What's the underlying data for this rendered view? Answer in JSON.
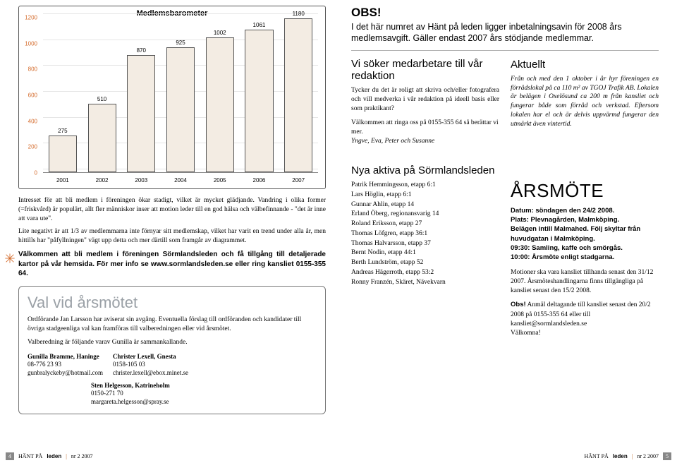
{
  "chart": {
    "title": "Medlemsbarometer",
    "type": "bar",
    "ymax": 1200,
    "ytick_step": 200,
    "yticks": [
      0,
      200,
      400,
      600,
      800,
      1000,
      1200
    ],
    "categories": [
      "2001",
      "2002",
      "2003",
      "2004",
      "2005",
      "2006",
      "2007"
    ],
    "values": [
      275,
      510,
      870,
      925,
      1002,
      1061,
      1180
    ],
    "bar_fill": "#f3ece3",
    "bar_border": "#555555",
    "ylabel_color": "#d46a2a",
    "grid_color": "#e5e5e5",
    "background_color": "#ffffff"
  },
  "left": {
    "p1": "Intresset för att bli medlem i föreningen ökar stadigt, vilket är mycket glädjande. Vandring i olika former (=friskvård) är populärt, allt fler människor inser att motion leder till en god hälsa och välbefinnande - \"det är inne att vara ute\".",
    "p2": "Lite negativt är att 1/3 av medlemmarna inte förnyar sitt medlemskap, vilket har varit en trend under alla år, men hittills har \"påfyllningen\" vägt upp detta och mer därtill som framgår av diagrammet.",
    "star_bold": "Välkommen att bli medlem i föreningen Sörmlandsleden och få tillgång till detaljerade kartor på vår hemsida. För mer info se www.sormlandsleden.se eller ring kansliet 0155-355 64.",
    "val": {
      "title": "Val vid årsmötet",
      "p1": "Ordförande Jan Larsson har aviserat sin avgång. Eventuella förslag till ordföranden och kandidater till övriga stadgeenliga val kan framföras till valberedningen eller vid årsmötet.",
      "p2": "Valberedning är följande varav Gunilla är sammankallande.",
      "c1": {
        "name": "Gunilla Bramme, Haninge",
        "phone": "08-776 23 93",
        "email": "gunbralyckeby@hotmail.com"
      },
      "c2": {
        "name": "Christer Lexell, Gnesta",
        "phone": "0158-105 03",
        "email": "christer.lexell@ebox.minet.se"
      },
      "c3": {
        "name": "Sten Helgesson, Katrineholm",
        "phone": "0150-271 70",
        "email": "margareta.helgesson@spray.se"
      }
    }
  },
  "right": {
    "obs": {
      "title": "OBS!",
      "body": "I det här numret av Hänt på leden ligger inbetalningsavin för 2008 års medlemsavgift. Gäller endast 2007 års stödjande medlemmar."
    },
    "colL": {
      "h1": "Vi söker medarbetare till vår redaktion",
      "p1": "Tycker du det är roligt att skriva och/eller fotografera och vill medverka i vår redaktion på ideell basis eller som praktikant?",
      "p2": "Välkommen att ringa oss på 0155-355 64 så berättar vi mer.",
      "sign": "Yngve, Eva, Peter och Susanne",
      "h2": "Nya aktiva på Sörmlandsleden",
      "list": [
        "Patrik Hemmingsson, etapp 6:1",
        "Lars Höglin, etapp 6:1",
        "Gunnar Ahlin, etapp 14",
        "Erland Öberg, regionansvarig 14",
        "Roland Eriksson, etapp 27",
        "Thomas Löfgren, etapp 36:1",
        "Thomas Halvarsson, etapp 37",
        "Bernt Nodin, etapp 44:1",
        "Berth Lundström, etapp 52",
        "Andreas Hägerroth, etapp 53:2",
        "Ronny Franzén, Skäret, Nävekvarn"
      ]
    },
    "colR": {
      "aktuellt_title": "Aktuellt",
      "aktuellt_body": "Från och med den 1 oktober i år hyr föreningen en förrådslokal på ca 110 m² av TGOJ Trafik AB. Lokalen är belägen i Oxelösund ca 200 m från kansliet och fungerar både som förråd och verkstad. Eftersom lokalen har el och är delvis uppvärmd fungerar den utmärkt även vintertid.",
      "arsmote_title": "ÅRSMÖTE",
      "d1": "Datum: söndagen den 24/2 2008.",
      "d2": "Plats: Plevnagården, Malmköping.",
      "d3": "Belägen intill Malmahed. Följ skyltar från huvudgatan i Malmköping.",
      "d4": "09:30: Samling, kaffe och smörgås.",
      "d5": "10:00: Årsmöte enligt stadgarna.",
      "p1": "Motioner ska vara kansliet tillhanda senast den 31/12 2007. Årsmöteshandlingarna finns tillgängliga på kansliet senast den 15/2 2008.",
      "p2a": "Obs!",
      "p2b": " Anmäl deltagande till kansliet senast den 20/2 2008 på 0155-355 64 eller till kansliet@sormlandsleden.se",
      "p3": "Välkomna!"
    }
  },
  "footer": {
    "left_num": "4",
    "right_num": "5",
    "text_pre": "HÄNT PÅ ",
    "text_leden": "leden",
    "text_post": "nr 2 2007"
  },
  "colors": {
    "accent_orange": "#d46a2a",
    "grey_title": "#9aa0a6"
  }
}
